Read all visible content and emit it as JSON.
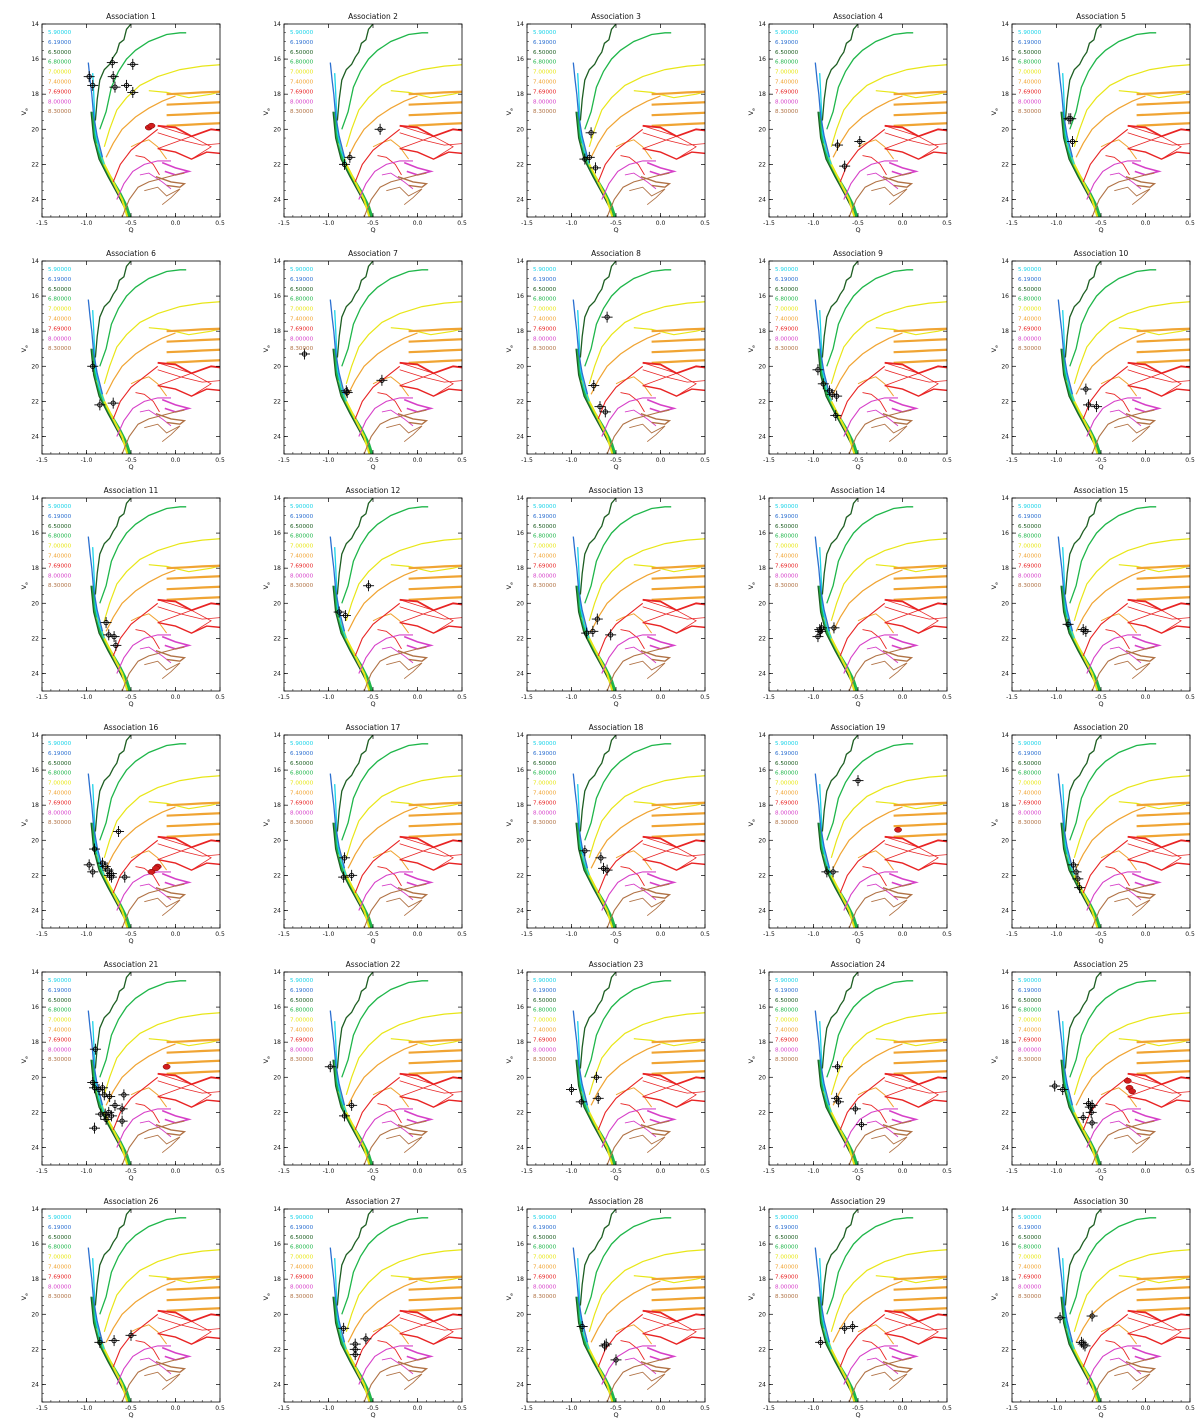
{
  "figure": {
    "title_prefix": "Association",
    "xlabel": "Q",
    "ylabel": "V",
    "ylabel_sub": "e",
    "x_ticks": [
      "-1.5",
      "-1.0",
      "-0.5",
      "0.0",
      "0.5"
    ],
    "y_ticks": [
      "14",
      "16",
      "18",
      "20",
      "22",
      "24"
    ],
    "isochrones": [
      {
        "label": "5.90000",
        "color": "#19d3e8"
      },
      {
        "label": "6.19000",
        "color": "#2b6fd0"
      },
      {
        "label": "6.50000",
        "color": "#1d5e22"
      },
      {
        "label": "6.80000",
        "color": "#1fb64a"
      },
      {
        "label": "7.00000",
        "color": "#e8e618"
      },
      {
        "label": "7.40000",
        "color": "#f0a433"
      },
      {
        "label": "7.69000",
        "color": "#e82424"
      },
      {
        "label": "8.00000",
        "color": "#d640c8"
      },
      {
        "label": "8.30000",
        "color": "#b07245"
      }
    ]
  },
  "chart_data": {
    "type": "scatter",
    "subplot_type": "color-magnitude diagram with isochrones",
    "xlim": [
      -1.5,
      0.5
    ],
    "ylim": [
      25,
      14
    ],
    "panels": [
      {
        "id": "1",
        "points": [
          [
            -0.97,
            17.0
          ],
          [
            -0.93,
            17.5
          ],
          [
            -0.71,
            16.2
          ],
          [
            -0.7,
            17.0
          ],
          [
            -0.68,
            17.6
          ],
          [
            -0.55,
            17.5
          ],
          [
            -0.48,
            16.3
          ],
          [
            -0.48,
            17.9
          ]
        ],
        "red": [
          [
            -0.3,
            19.9
          ],
          [
            -0.27,
            19.8
          ]
        ]
      },
      {
        "id": "2",
        "points": [
          [
            -0.82,
            22.0
          ],
          [
            -0.76,
            21.6
          ],
          [
            -0.42,
            20.0
          ]
        ],
        "red": []
      },
      {
        "id": "3",
        "points": [
          [
            -0.85,
            21.7
          ],
          [
            -0.8,
            21.6
          ],
          [
            -0.78,
            20.2
          ],
          [
            -0.73,
            22.2
          ]
        ],
        "red": []
      },
      {
        "id": "4",
        "points": [
          [
            -0.73,
            20.9
          ],
          [
            -0.65,
            22.1
          ],
          [
            -0.48,
            20.7
          ]
        ],
        "red": []
      },
      {
        "id": "5",
        "points": [
          [
            -0.86,
            19.4
          ],
          [
            -0.84,
            19.4
          ],
          [
            -0.82,
            20.7
          ]
        ],
        "red": []
      },
      {
        "id": "6",
        "points": [
          [
            -0.93,
            20.0
          ],
          [
            -0.85,
            22.2
          ],
          [
            -0.7,
            22.1
          ]
        ],
        "red": []
      },
      {
        "id": "7",
        "points": [
          [
            -1.27,
            19.3
          ],
          [
            -0.8,
            21.4
          ],
          [
            -0.79,
            21.5
          ],
          [
            -0.4,
            20.8
          ]
        ],
        "red": []
      },
      {
        "id": "8",
        "points": [
          [
            -0.75,
            21.1
          ],
          [
            -0.68,
            22.3
          ],
          [
            -0.62,
            22.6
          ],
          [
            -0.6,
            17.2
          ]
        ],
        "red": []
      },
      {
        "id": "9",
        "points": [
          [
            -0.95,
            20.2
          ],
          [
            -0.89,
            21.0
          ],
          [
            -0.82,
            21.4
          ],
          [
            -0.79,
            21.6
          ],
          [
            -0.74,
            21.7
          ],
          [
            -0.75,
            22.8
          ]
        ],
        "red": []
      },
      {
        "id": "10",
        "points": [
          [
            -0.67,
            21.3
          ],
          [
            -0.64,
            22.2
          ],
          [
            -0.55,
            22.3
          ]
        ],
        "red": []
      },
      {
        "id": "11",
        "points": [
          [
            -0.78,
            21.1
          ],
          [
            -0.75,
            21.8
          ],
          [
            -0.69,
            21.9
          ],
          [
            -0.67,
            22.4
          ]
        ],
        "red": []
      },
      {
        "id": "12",
        "points": [
          [
            -0.88,
            20.5
          ],
          [
            -0.81,
            20.7
          ],
          [
            -0.55,
            19.0
          ]
        ],
        "red": []
      },
      {
        "id": "13",
        "points": [
          [
            -0.83,
            21.7
          ],
          [
            -0.76,
            21.6
          ],
          [
            -0.71,
            20.9
          ],
          [
            -0.56,
            21.8
          ]
        ],
        "red": []
      },
      {
        "id": "14",
        "points": [
          [
            -0.93,
            21.5
          ],
          [
            -0.92,
            21.6
          ],
          [
            -0.91,
            21.4
          ],
          [
            -0.95,
            21.9
          ],
          [
            -0.77,
            21.4
          ]
        ],
        "red": []
      },
      {
        "id": "15",
        "points": [
          [
            -0.87,
            21.2
          ],
          [
            -0.7,
            21.5
          ],
          [
            -0.67,
            21.6
          ]
        ],
        "red": []
      },
      {
        "id": "16",
        "points": [
          [
            -0.97,
            21.4
          ],
          [
            -0.93,
            21.8
          ],
          [
            -0.91,
            20.5
          ],
          [
            -0.82,
            21.3
          ],
          [
            -0.79,
            21.5
          ],
          [
            -0.76,
            21.7
          ],
          [
            -0.74,
            22.0
          ],
          [
            -0.72,
            21.9
          ],
          [
            -0.72,
            22.1
          ],
          [
            -0.64,
            19.5
          ],
          [
            -0.57,
            22.1
          ]
        ],
        "red": [
          [
            -0.2,
            21.5
          ],
          [
            -0.27,
            21.8
          ],
          [
            -0.22,
            21.6
          ]
        ]
      },
      {
        "id": "17",
        "points": [
          [
            -0.82,
            21.0
          ],
          [
            -0.83,
            22.1
          ],
          [
            -0.74,
            22.0
          ]
        ],
        "red": []
      },
      {
        "id": "18",
        "points": [
          [
            -0.85,
            20.6
          ],
          [
            -0.67,
            21.0
          ],
          [
            -0.64,
            21.6
          ],
          [
            -0.6,
            21.7
          ]
        ],
        "red": []
      },
      {
        "id": "19",
        "points": [
          [
            -0.85,
            21.8
          ],
          [
            -0.78,
            21.8
          ],
          [
            -0.5,
            16.6
          ]
        ],
        "red": [
          [
            -0.05,
            19.4
          ]
        ]
      },
      {
        "id": "20",
        "points": [
          [
            -0.81,
            21.4
          ],
          [
            -0.78,
            21.8
          ],
          [
            -0.76,
            22.2
          ],
          [
            -0.74,
            22.7
          ]
        ],
        "red": []
      },
      {
        "id": "21",
        "points": [
          [
            -0.9,
            18.4
          ],
          [
            -0.93,
            20.3
          ],
          [
            -0.91,
            20.6
          ],
          [
            -0.86,
            20.7
          ],
          [
            -0.82,
            20.6
          ],
          [
            -0.8,
            21.0
          ],
          [
            -0.74,
            21.1
          ],
          [
            -0.84,
            22.1
          ],
          [
            -0.79,
            22.1
          ],
          [
            -0.75,
            22.0
          ],
          [
            -0.72,
            22.2
          ],
          [
            -0.68,
            21.6
          ],
          [
            -0.6,
            21.8
          ],
          [
            -0.58,
            21.0
          ],
          [
            -0.6,
            22.5
          ],
          [
            -0.91,
            22.9
          ],
          [
            -0.78,
            22.4
          ]
        ],
        "red": [
          [
            -0.1,
            19.4
          ]
        ]
      },
      {
        "id": "22",
        "points": [
          [
            -0.98,
            19.4
          ],
          [
            -0.82,
            22.2
          ],
          [
            -0.74,
            21.6
          ]
        ],
        "red": []
      },
      {
        "id": "23",
        "points": [
          [
            -1.0,
            20.7
          ],
          [
            -0.89,
            21.4
          ],
          [
            -0.7,
            21.2
          ],
          [
            -0.72,
            20.0
          ]
        ],
        "red": []
      },
      {
        "id": "24",
        "points": [
          [
            -0.74,
            21.2
          ],
          [
            -0.72,
            21.4
          ],
          [
            -0.73,
            19.4
          ],
          [
            -0.53,
            21.8
          ],
          [
            -0.46,
            22.7
          ]
        ],
        "red": []
      },
      {
        "id": "25",
        "points": [
          [
            -1.02,
            20.5
          ],
          [
            -0.93,
            20.7
          ],
          [
            -0.7,
            22.3
          ],
          [
            -0.64,
            21.5
          ],
          [
            -0.62,
            21.7
          ],
          [
            -0.6,
            21.6
          ],
          [
            -0.61,
            22.0
          ],
          [
            -0.6,
            22.6
          ]
        ],
        "red": [
          [
            -0.2,
            20.2
          ],
          [
            -0.18,
            20.6
          ],
          [
            -0.15,
            20.8
          ]
        ]
      },
      {
        "id": "26",
        "points": [
          [
            -0.85,
            21.6
          ],
          [
            -0.69,
            21.5
          ],
          [
            -0.5,
            21.2
          ]
        ],
        "red": []
      },
      {
        "id": "27",
        "points": [
          [
            -0.83,
            20.8
          ],
          [
            -0.7,
            21.7
          ],
          [
            -0.7,
            22.0
          ],
          [
            -0.7,
            22.3
          ],
          [
            -0.58,
            21.4
          ]
        ],
        "red": []
      },
      {
        "id": "28",
        "points": [
          [
            -0.88,
            20.7
          ],
          [
            -0.63,
            21.8
          ],
          [
            -0.61,
            21.7
          ],
          [
            -0.5,
            22.6
          ]
        ],
        "red": []
      },
      {
        "id": "29",
        "points": [
          [
            -0.92,
            21.6
          ],
          [
            -0.65,
            20.8
          ],
          [
            -0.56,
            20.7
          ]
        ],
        "red": []
      },
      {
        "id": "30",
        "points": [
          [
            -0.96,
            20.2
          ],
          [
            -0.72,
            21.6
          ],
          [
            -0.7,
            21.7
          ],
          [
            -0.68,
            21.8
          ],
          [
            -0.6,
            20.1
          ]
        ],
        "red": []
      }
    ]
  }
}
